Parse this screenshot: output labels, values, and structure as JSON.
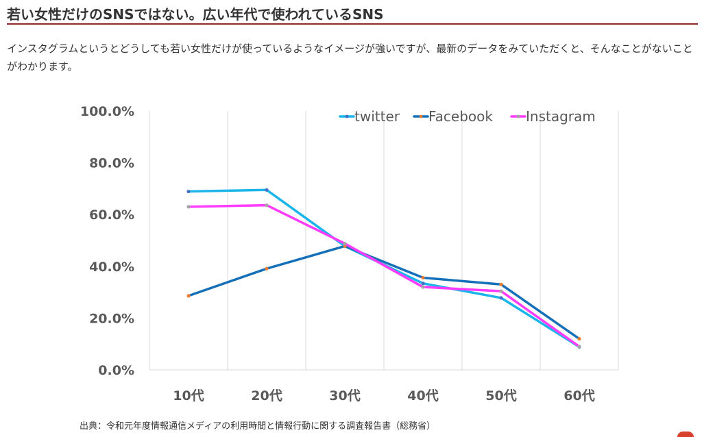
{
  "article": {
    "heading": "若い女性だけのSNSではない。広い年代で使われているSNS",
    "intro": "インスタグラムというとどうしても若い女性だけが使っているようなイメージが強いですが、最新のデータをみていただくと、そんなことがないことがわかります。",
    "source": "出典：令和元年度情報通信メディアの利用時間と情報行動に関する調査報告書（総務省）"
  },
  "chart_data": {
    "type": "line",
    "title": "",
    "xlabel": "",
    "ylabel": "",
    "categories": [
      "10代",
      "20代",
      "30代",
      "40代",
      "50代",
      "60代"
    ],
    "ylim": [
      0,
      100
    ],
    "yticks": [
      "0.0%",
      "20.0%",
      "40.0%",
      "60.0%",
      "80.0%",
      "100.0%"
    ],
    "grid": "vertical",
    "legend_position": "top-right",
    "series": [
      {
        "name": "twitter",
        "color": "#1cb5ea",
        "marker_color": "#4472c4",
        "values": [
          68.9,
          69.5,
          47.8,
          33.4,
          27.8,
          8.9
        ]
      },
      {
        "name": "Facebook",
        "color": "#1570b8",
        "marker_color": "#ed7d31",
        "values": [
          28.6,
          39.1,
          47.8,
          35.6,
          33.0,
          12.0
        ]
      },
      {
        "name": "Instagram",
        "color": "#ff3bff",
        "marker_color": "#a5a5a5",
        "values": [
          63.0,
          63.6,
          48.8,
          32.0,
          30.4,
          9.0
        ]
      }
    ]
  }
}
